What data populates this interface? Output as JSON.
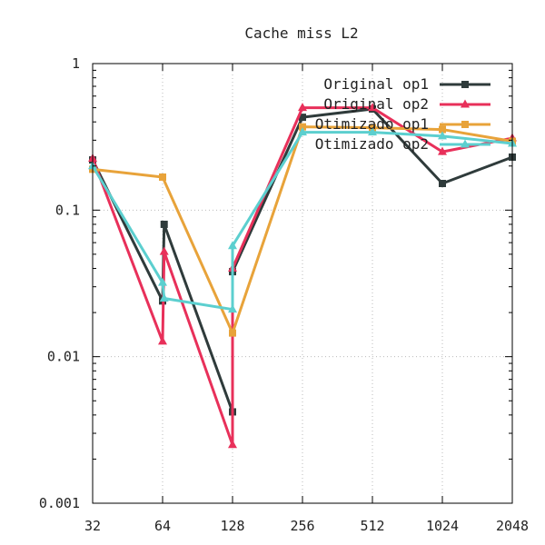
{
  "chart_data": {
    "type": "line",
    "title": "Cache miss L2",
    "xlabel": "",
    "ylabel": "",
    "x_scale": "log2",
    "y_scale": "log10",
    "xlim": [
      32,
      2048
    ],
    "ylim": [
      0.001,
      1
    ],
    "x_ticks": [
      "32",
      "64",
      "128",
      "256",
      "512",
      "1024",
      "2048"
    ],
    "y_ticks": [
      "1",
      "0.1",
      "0.01",
      "0.001"
    ],
    "grid": true,
    "legend_position": "top-right",
    "series": [
      {
        "name": "Original op1",
        "color": "#2f3b3b",
        "marker": "square",
        "points": [
          [
            32,
            0.22
          ],
          [
            64,
            0.024
          ],
          [
            65,
            0.08
          ],
          [
            128,
            0.0042
          ],
          [
            128,
            0.038
          ],
          [
            256,
            0.43
          ],
          [
            512,
            0.49
          ],
          [
            1024,
            0.152
          ],
          [
            2048,
            0.23
          ]
        ]
      },
      {
        "name": "Original op2",
        "color": "#e8305a",
        "marker": "triangle",
        "points": [
          [
            32,
            0.225
          ],
          [
            64,
            0.0127
          ],
          [
            65,
            0.052
          ],
          [
            128,
            0.0025
          ],
          [
            128,
            0.04
          ],
          [
            256,
            0.5
          ],
          [
            512,
            0.5
          ],
          [
            1024,
            0.25
          ],
          [
            2048,
            0.31
          ]
        ]
      },
      {
        "name": "Otimizado op1",
        "color": "#e8a33a",
        "marker": "square",
        "points": [
          [
            32,
            0.19
          ],
          [
            64,
            0.168
          ],
          [
            128,
            0.0145
          ],
          [
            256,
            0.37
          ],
          [
            512,
            0.365
          ],
          [
            1024,
            0.355
          ],
          [
            2048,
            0.295
          ]
        ]
      },
      {
        "name": "Otimizado op2",
        "color": "#5ccfcf",
        "marker": "triangle",
        "points": [
          [
            32,
            0.2
          ],
          [
            64,
            0.032
          ],
          [
            65,
            0.025
          ],
          [
            128,
            0.021
          ],
          [
            128,
            0.057
          ],
          [
            256,
            0.34
          ],
          [
            512,
            0.34
          ],
          [
            1024,
            0.32
          ],
          [
            2048,
            0.285
          ]
        ]
      }
    ]
  }
}
